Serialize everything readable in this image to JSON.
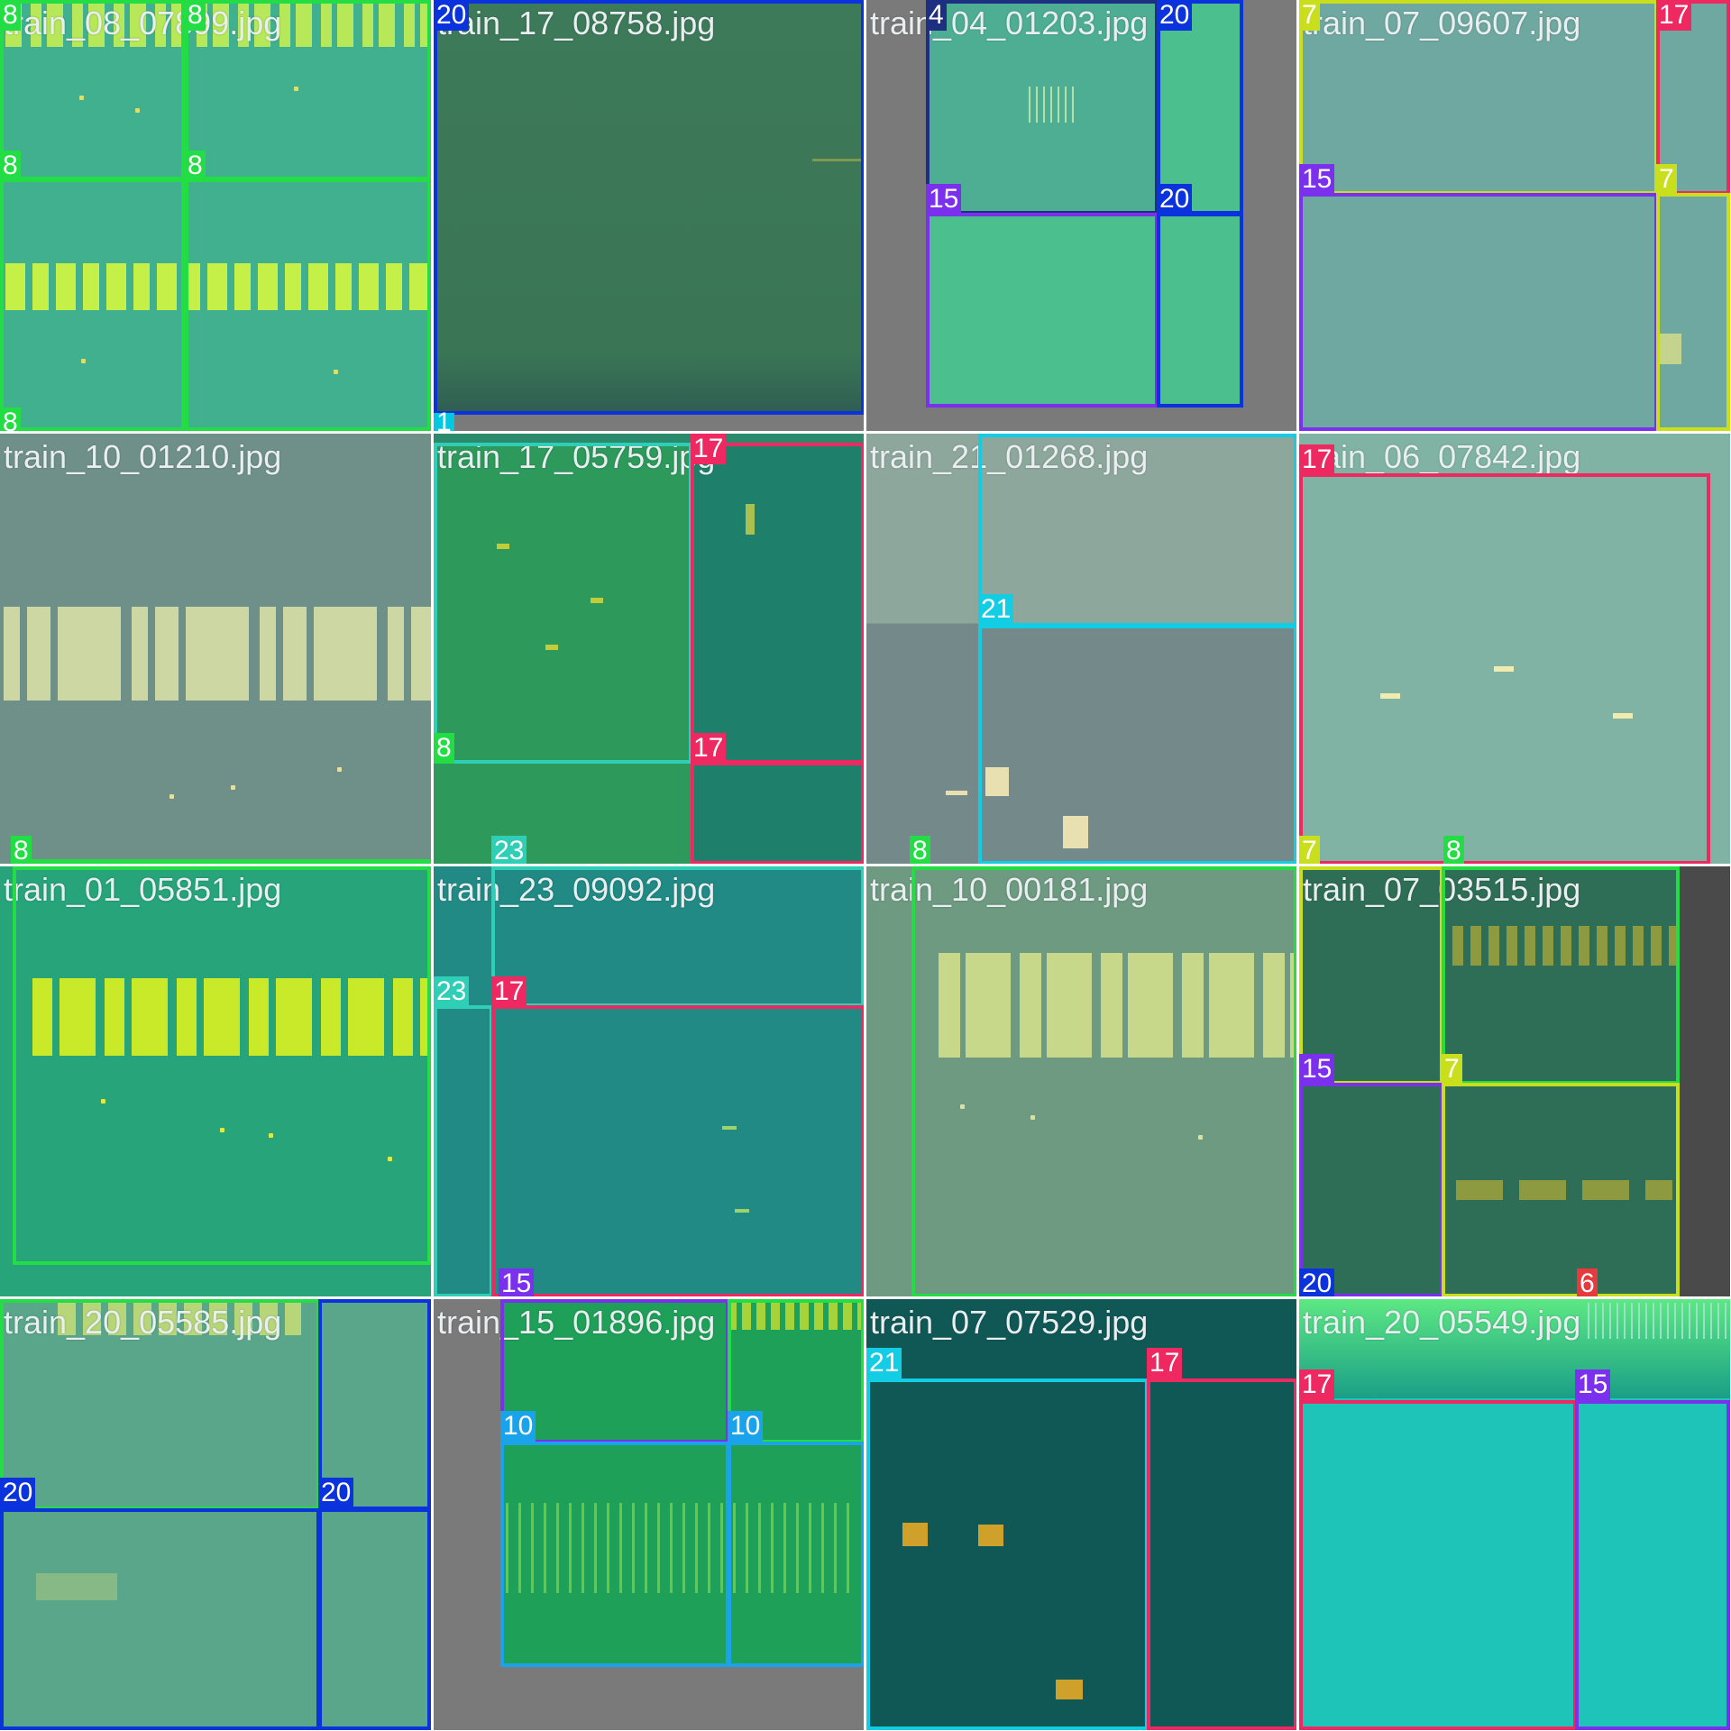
{
  "classes": {
    "1": {
      "color": "#00c8e0"
    },
    "4": {
      "color": "#1d2f80"
    },
    "6": {
      "color": "#e8393c"
    },
    "7": {
      "color": "#c9df1c"
    },
    "8": {
      "color": "#22dd44"
    },
    "10": {
      "color": "#1aa3ea"
    },
    "15": {
      "color": "#7b30ee"
    },
    "17": {
      "color": "#ee2860"
    },
    "20": {
      "color": "#0a33dd"
    },
    "21": {
      "color": "#12cde3"
    },
    "23": {
      "color": "#2ecfb6"
    }
  },
  "tiles": [
    {
      "id": "t00",
      "filename": "train_08_07899.jpg",
      "labels": [
        "8",
        "8",
        "8",
        "8",
        "8"
      ]
    },
    {
      "id": "t01",
      "filename": "train_17_08758.jpg",
      "labels": [
        "20",
        "1"
      ]
    },
    {
      "id": "t02",
      "filename": "train_04_01203.jpg",
      "labels": [
        "4",
        "20",
        "15",
        "20"
      ]
    },
    {
      "id": "t03",
      "filename": "train_07_09607.jpg",
      "labels": [
        "7",
        "17",
        "15",
        "7"
      ]
    },
    {
      "id": "t10",
      "filename": "train_10_01210.jpg",
      "labels": [
        "8"
      ]
    },
    {
      "id": "t11",
      "filename": "train_17_05759.jpg",
      "labels": [
        "17",
        "8",
        "17",
        "23"
      ]
    },
    {
      "id": "t12",
      "filename": "train_21_01268.jpg",
      "labels": [
        "21",
        "21",
        "8"
      ]
    },
    {
      "id": "t13",
      "filename": "train_06_07842.jpg",
      "labels": [
        "17",
        "7",
        "8"
      ]
    },
    {
      "id": "t20",
      "filename": "train_01_05851.jpg",
      "labels": [
        "8"
      ]
    },
    {
      "id": "t21",
      "filename": "train_23_09092.jpg",
      "labels": [
        "23",
        "17",
        "15"
      ]
    },
    {
      "id": "t22",
      "filename": "train_10_00181.jpg",
      "labels": [
        "8"
      ]
    },
    {
      "id": "t23",
      "filename": "train_07_03515.jpg",
      "labels": [
        "15",
        "7",
        "20",
        "6"
      ]
    },
    {
      "id": "t30",
      "filename": "train_20_05585.jpg",
      "labels": [
        "8",
        "20",
        "20",
        "20"
      ]
    },
    {
      "id": "t31",
      "filename": "train_15_01896.jpg",
      "labels": [
        "15",
        "8",
        "10",
        "10"
      ]
    },
    {
      "id": "t32",
      "filename": "train_07_07529.jpg",
      "labels": [
        "21",
        "17"
      ]
    },
    {
      "id": "t33",
      "filename": "train_20_05549.jpg",
      "labels": [
        "17",
        "15"
      ]
    }
  ]
}
